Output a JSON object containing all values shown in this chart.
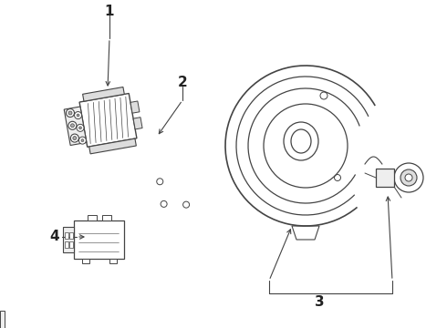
{
  "background_color": "#ffffff",
  "line_color": "#444444",
  "light_gray": "#cccccc",
  "mid_gray": "#999999",
  "dark_gray": "#666666",
  "label_color": "#222222"
}
